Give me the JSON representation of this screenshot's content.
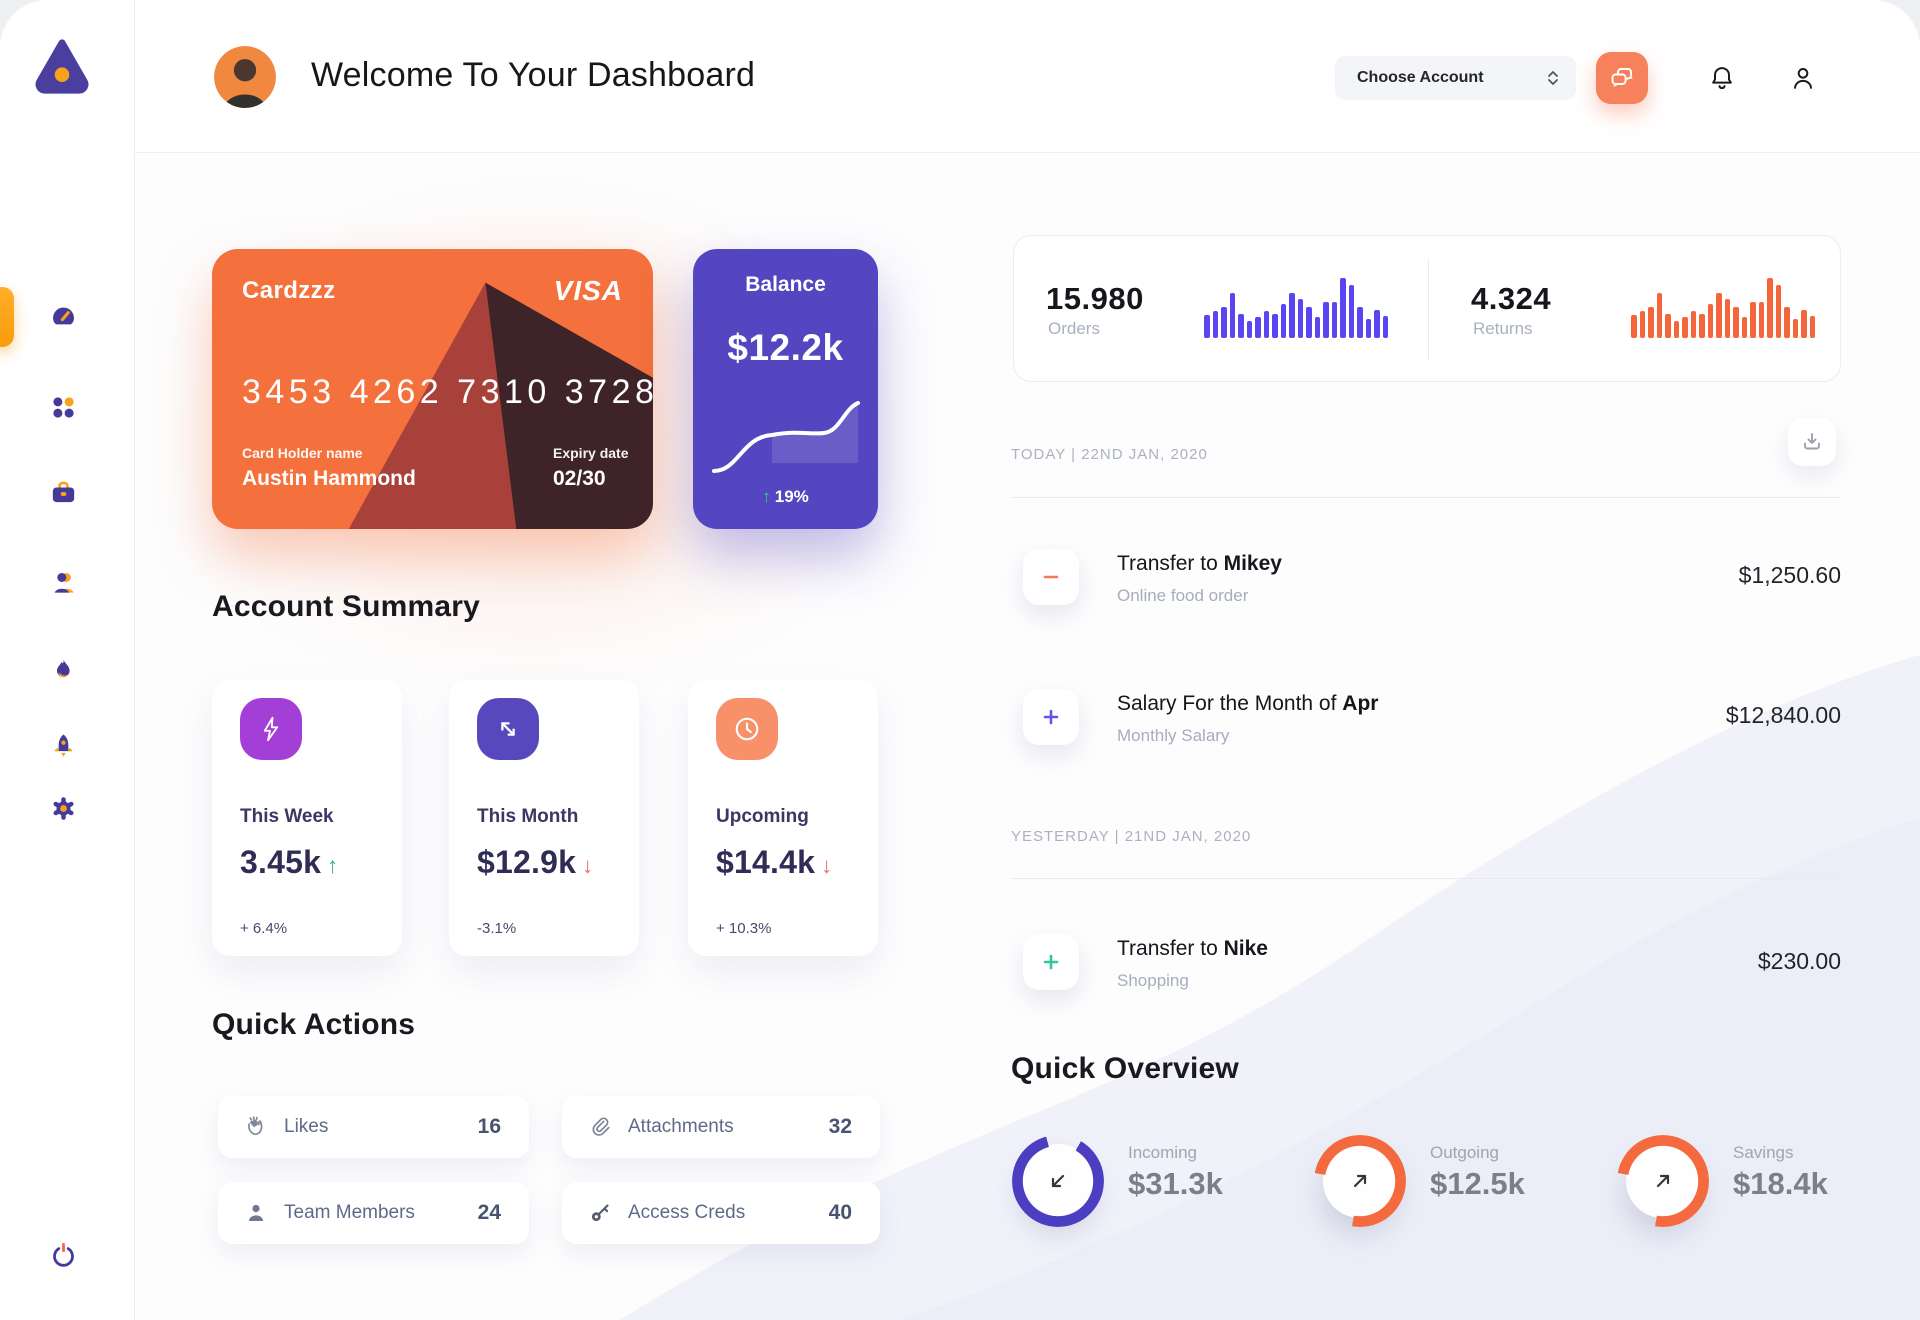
{
  "window": {
    "title": "Welcome To Your Dashboard"
  },
  "header": {
    "account_selector_label": "Choose Account"
  },
  "sidebar": {
    "items": [
      "dashboard",
      "apps",
      "portfolio",
      "contacts",
      "trending",
      "boost",
      "settings"
    ],
    "active_item": "dashboard"
  },
  "credit_card": {
    "name": "Cardzzz",
    "brand": "VISA",
    "number": "3453 4262 7310 3728",
    "holder_label": "Card Holder name",
    "holder": "Austin Hammond",
    "expiry_label": "Expiry date",
    "expiry": "02/30"
  },
  "balance_card": {
    "label": "Balance",
    "value": "$12.2k",
    "trend_glyph": "↑",
    "change": "19%"
  },
  "account_summary": {
    "title": "Account Summary",
    "cards": [
      {
        "label": "This Week",
        "value": "3.45k",
        "arrow": "↑",
        "change": "+ 6.4%",
        "icon": "lightning-icon",
        "icon_color": "#A33FD6"
      },
      {
        "label": "This Month",
        "value": "$12.9k",
        "arrow": "↓",
        "change": "-3.1%",
        "icon": "transfer-arrows-icon",
        "icon_color": "#5748BE"
      },
      {
        "label": "Upcoming",
        "value": "$14.4k",
        "arrow": "↓",
        "change": "+ 10.3%",
        "icon": "clock-icon",
        "icon_color": "#F8906A"
      }
    ]
  },
  "quick_actions": {
    "title": "Quick Actions",
    "items": [
      {
        "label": "Likes",
        "count": "16",
        "icon": "clap-icon"
      },
      {
        "label": "Attachments",
        "count": "32",
        "icon": "paperclip-icon"
      },
      {
        "label": "Team Members",
        "count": "24",
        "icon": "person-icon"
      },
      {
        "label": "Access Creds",
        "count": "40",
        "icon": "key-icon"
      }
    ]
  },
  "stats": {
    "orders": {
      "value": "15.980",
      "label": "Orders",
      "bar_color": "#5A46F0",
      "bars": [
        38,
        45,
        52,
        75,
        40,
        28,
        35,
        45,
        40,
        57,
        75,
        65,
        52,
        35,
        60,
        60,
        100,
        88,
        52,
        32,
        47,
        36
      ]
    },
    "returns": {
      "value": "4.324",
      "label": "Returns",
      "bar_color": "#F5653A",
      "bars": [
        38,
        45,
        52,
        75,
        40,
        28,
        35,
        45,
        40,
        57,
        75,
        65,
        52,
        35,
        60,
        60,
        100,
        88,
        52,
        32,
        47,
        36
      ]
    }
  },
  "transactions": {
    "groups": [
      {
        "date_label": "TODAY | 22ND JAN, 2020",
        "rows": [
          {
            "icon": "minus-icon",
            "accent": "#F4785B",
            "title_prefix": "Transfer to ",
            "title_bold": "Mikey",
            "subtitle": "Online food order",
            "amount": "$1,250.60"
          },
          {
            "icon": "plus-icon",
            "accent": "#6355E5",
            "title_prefix": "Salary For the Month of ",
            "title_bold": "Apr",
            "subtitle": "Monthly Salary",
            "amount": "$12,840.00"
          }
        ]
      },
      {
        "date_label": "YESTERDAY | 21ND JAN, 2020",
        "rows": [
          {
            "icon": "plus-icon",
            "accent": "#35C39E",
            "title_prefix": "Transfer to ",
            "title_bold": "Nike",
            "subtitle": "Shopping",
            "amount": "$230.00"
          }
        ]
      }
    ]
  },
  "quick_overview": {
    "title": "Quick Overview",
    "items": [
      {
        "label": "Incoming",
        "value": "$31.3k",
        "ring_color": "#4B3EC1",
        "arc_from": 30,
        "arc_sweep": 315,
        "arrow": "down-left-arrow-icon"
      },
      {
        "label": "Outgoing",
        "value": "$12.5k",
        "ring_color": "#F4693D",
        "arc_from": 280,
        "arc_sweep": 270,
        "arrow": "up-right-arrow-icon"
      },
      {
        "label": "Savings",
        "value": "$18.4k",
        "ring_color": "#F4693D",
        "arc_from": 280,
        "arc_sweep": 270,
        "arrow": "up-right-arrow-icon"
      }
    ]
  }
}
